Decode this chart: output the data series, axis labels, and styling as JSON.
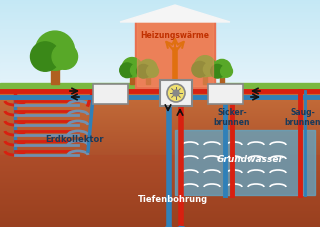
{
  "sky_top": "#c5e8f5",
  "sky_bottom": "#ddf0f8",
  "grass_color": "#7ab840",
  "ground_upper_color": "#c8703a",
  "ground_lower_color": "#a84828",
  "water_color": "#60a8c8",
  "water_alpha": 0.75,
  "house_wall": "#e87050",
  "house_glow": "#f09060",
  "house_roof": "#f5f5f5",
  "pipe_red": "#d82010",
  "pipe_blue": "#3080b8",
  "pipe_light": "#80b8d8",
  "coil_red": "#d82010",
  "coil_blue": "#7090b0",
  "box_face": "#f0f0f0",
  "box_edge": "#888888",
  "pump_face": "#f0e070",
  "heat_color": "#e07010",
  "arrow_color": "#111111",
  "text_dark": "#1a3a5a",
  "text_white": "#ffffff",
  "trunk_color": "#b06020",
  "foliage_color": "#58a828",
  "foliage_dark": "#3a8818",
  "label_heizung": "Heizungswärme",
  "label_erdkol": "Erdkollektor",
  "label_tiefen": "Tiefenbohrung",
  "label_sicker": "Sicker-\nbrunnen",
  "label_saug": "Saug-\nbrunnen",
  "label_wasser": "Grundwasser"
}
